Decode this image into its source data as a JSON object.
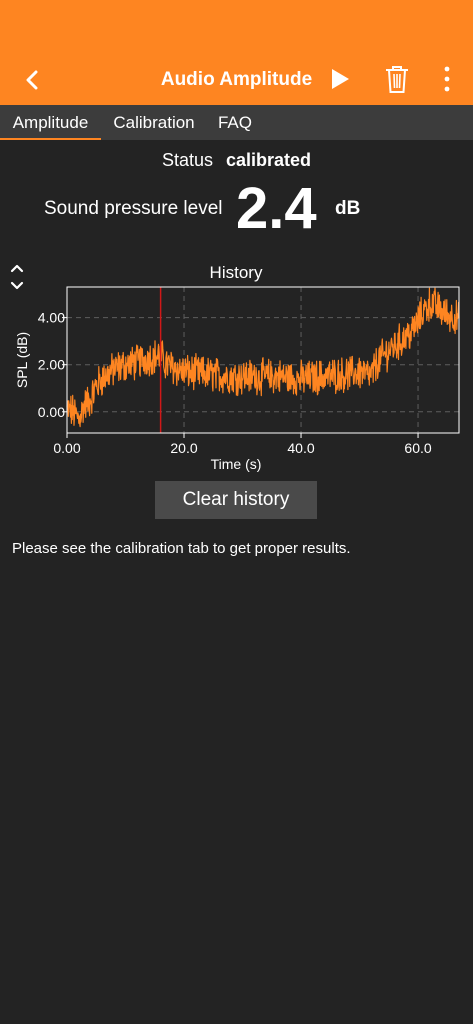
{
  "header": {
    "title": "Audio Amplitude",
    "back_icon": "chevron-left-icon",
    "play_icon": "play-icon",
    "delete_icon": "trash-icon",
    "more_icon": "more-vertical-icon",
    "background_color": "#fe8521"
  },
  "tabs": [
    {
      "label": "Amplitude",
      "active": true
    },
    {
      "label": "Calibration",
      "active": false
    },
    {
      "label": "FAQ",
      "active": false
    }
  ],
  "status": {
    "label": "Status",
    "value": "calibrated"
  },
  "spl": {
    "label": "Sound pressure level",
    "value": "2.4",
    "unit": "dB"
  },
  "history": {
    "collapse_icon": "chevron-up-down-icon"
  },
  "chart_data": {
    "type": "line",
    "title": "History",
    "xlabel": "Time (s)",
    "ylabel": "SPL (dB)",
    "xlim": [
      0,
      67
    ],
    "ylim": [
      -0.9,
      5.3
    ],
    "xticks": [
      0,
      20,
      40,
      60
    ],
    "xtick_labels": [
      "0.00",
      "20.0",
      "40.0",
      "60.0"
    ],
    "yticks": [
      0,
      2,
      4
    ],
    "ytick_labels": [
      "0.00",
      "2.00",
      "4.00"
    ],
    "grid": true,
    "line_color": "#fe8521",
    "marker_x": 16,
    "marker_color": "#d01818",
    "series": [
      {
        "x": [
          0,
          1,
          2,
          3,
          4,
          5,
          6,
          8,
          10,
          12,
          14,
          16,
          17,
          20,
          24,
          28,
          32,
          36,
          40,
          44,
          48,
          50,
          52,
          53,
          55,
          57,
          59,
          61,
          62,
          63,
          64,
          65,
          66,
          67
        ],
        "values": [
          0.1,
          0.0,
          -0.3,
          0.3,
          0.5,
          1.1,
          1.4,
          1.8,
          2.0,
          2.1,
          2.3,
          2.4,
          2.0,
          1.7,
          1.6,
          1.5,
          1.5,
          1.5,
          1.4,
          1.5,
          1.6,
          1.7,
          1.5,
          2.1,
          2.6,
          3.0,
          3.4,
          4.3,
          4.6,
          4.5,
          4.3,
          4.1,
          4.1,
          3.9
        ]
      }
    ]
  },
  "clear_button": {
    "label": "Clear history"
  },
  "note": "Please see the calibration tab to get proper results."
}
